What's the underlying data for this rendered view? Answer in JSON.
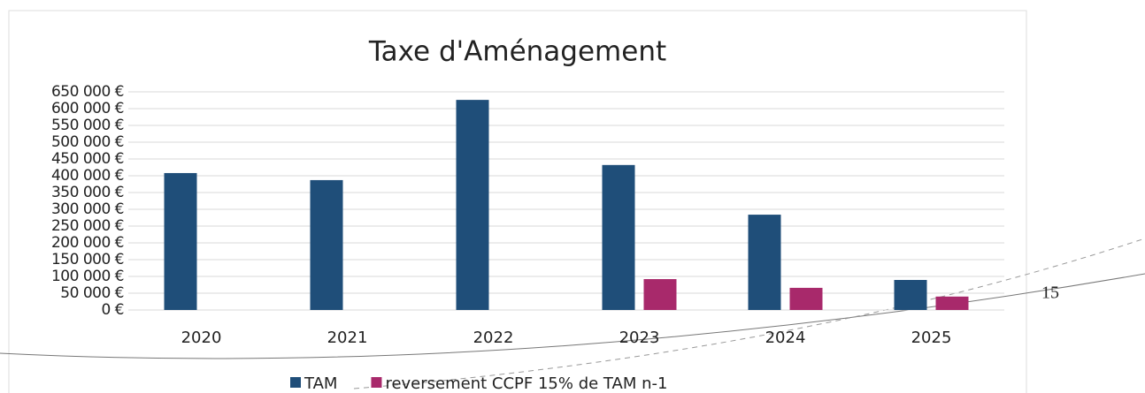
{
  "chart_data": {
    "type": "bar",
    "title": "Taxe d'Aménagement",
    "categories": [
      "2020",
      "2021",
      "2022",
      "2023",
      "2024",
      "2025"
    ],
    "series": [
      {
        "name": "TAM",
        "color": "#1f4e79",
        "values": [
          408000,
          387000,
          626000,
          432000,
          284000,
          89500
        ]
      },
      {
        "name": "reversement CCPF 15% de TAM n-1",
        "color": "#a8296b",
        "values": [
          null,
          null,
          null,
          92000,
          66000,
          40000
        ]
      }
    ],
    "ylim": [
      0,
      650000
    ],
    "yticks": [
      {
        "value": 0,
        "label": "0 €"
      },
      {
        "value": 50000,
        "label": "50 000 €"
      },
      {
        "value": 100000,
        "label": "100 000 €"
      },
      {
        "value": 150000,
        "label": "150 000 €"
      },
      {
        "value": 200000,
        "label": "200 000 €"
      },
      {
        "value": 250000,
        "label": "250 000 €"
      },
      {
        "value": 300000,
        "label": "300 000 €"
      },
      {
        "value": 350000,
        "label": "350 000 €"
      },
      {
        "value": 400000,
        "label": "400 000 €"
      },
      {
        "value": 450000,
        "label": "450 000 €"
      },
      {
        "value": 500000,
        "label": "500 000 €"
      },
      {
        "value": 550000,
        "label": "550 000 €"
      },
      {
        "value": 600000,
        "label": "600 000 €"
      },
      {
        "value": 650000,
        "label": "650 000 €"
      }
    ],
    "grid": true,
    "legend": "bottom",
    "page_number": "15"
  }
}
